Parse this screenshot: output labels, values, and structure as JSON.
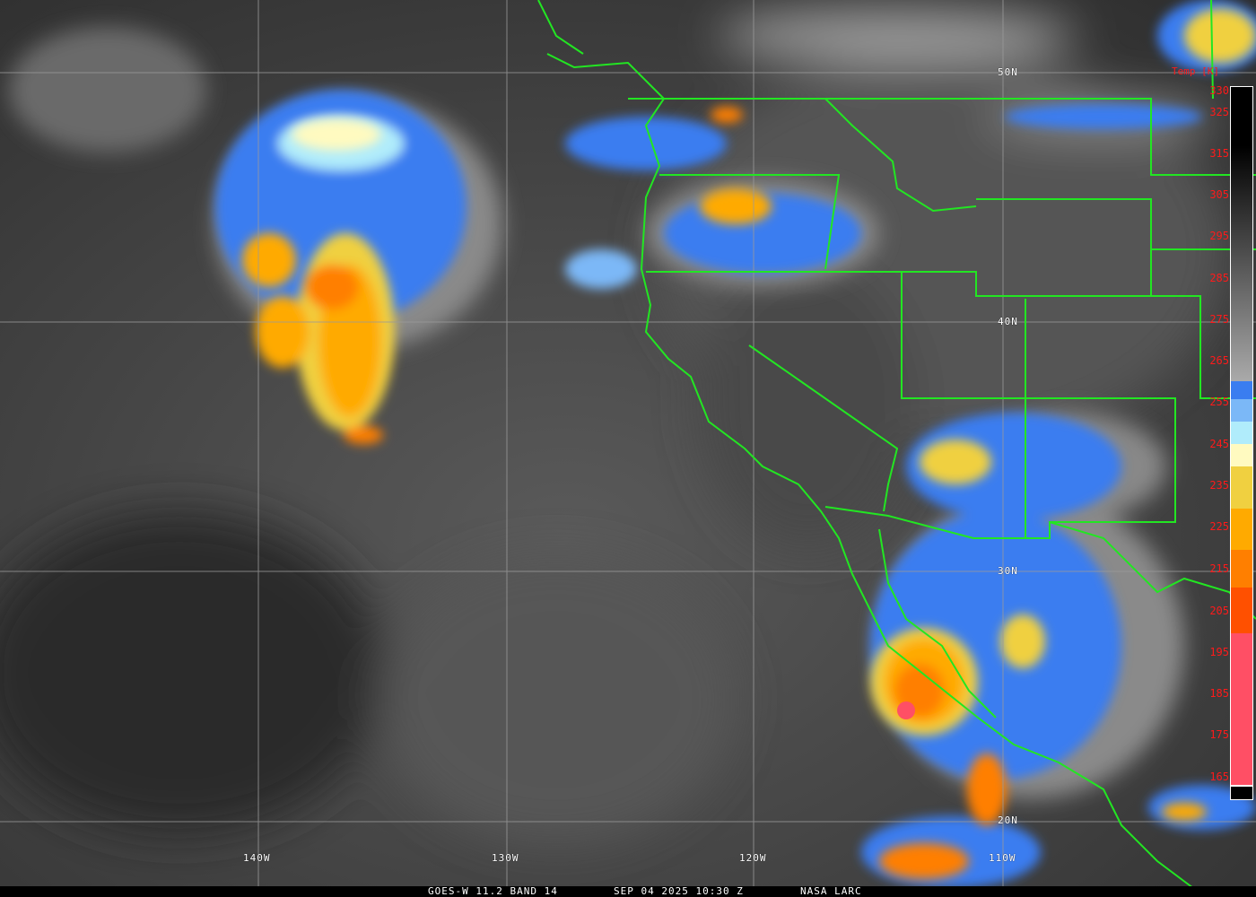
{
  "caption": {
    "satellite": "GOES-W 11.2 BAND 14",
    "datetime": "SEP 04 2025 10:30 Z",
    "credit": "NASA LARC"
  },
  "lat_labels": [
    "50N",
    "40N",
    "30N",
    "20N"
  ],
  "lon_labels": [
    "140W",
    "130W",
    "120W",
    "110W"
  ],
  "colorbar": {
    "title": "Temp [K]",
    "ticks": [
      "330",
      "325",
      "315",
      "305",
      "295",
      "285",
      "275",
      "265",
      "255",
      "245",
      "235",
      "225",
      "215",
      "205",
      "195",
      "185",
      "175",
      "165"
    ],
    "colors": {
      "cold_pink": "#ff4f65",
      "red_orange": "#ff5000",
      "orange": "#ff7f00",
      "amber": "#ffaa00",
      "yellow": "#f0d040",
      "pale_yellow": "#fffac0",
      "cyan": "#b0ecfb",
      "light_blue": "#7bb8f7",
      "blue": "#3a7df0"
    }
  },
  "colors": {
    "borders": "#22e622",
    "grid": "#9a9a9a",
    "label_red": "#ff1a1a"
  }
}
